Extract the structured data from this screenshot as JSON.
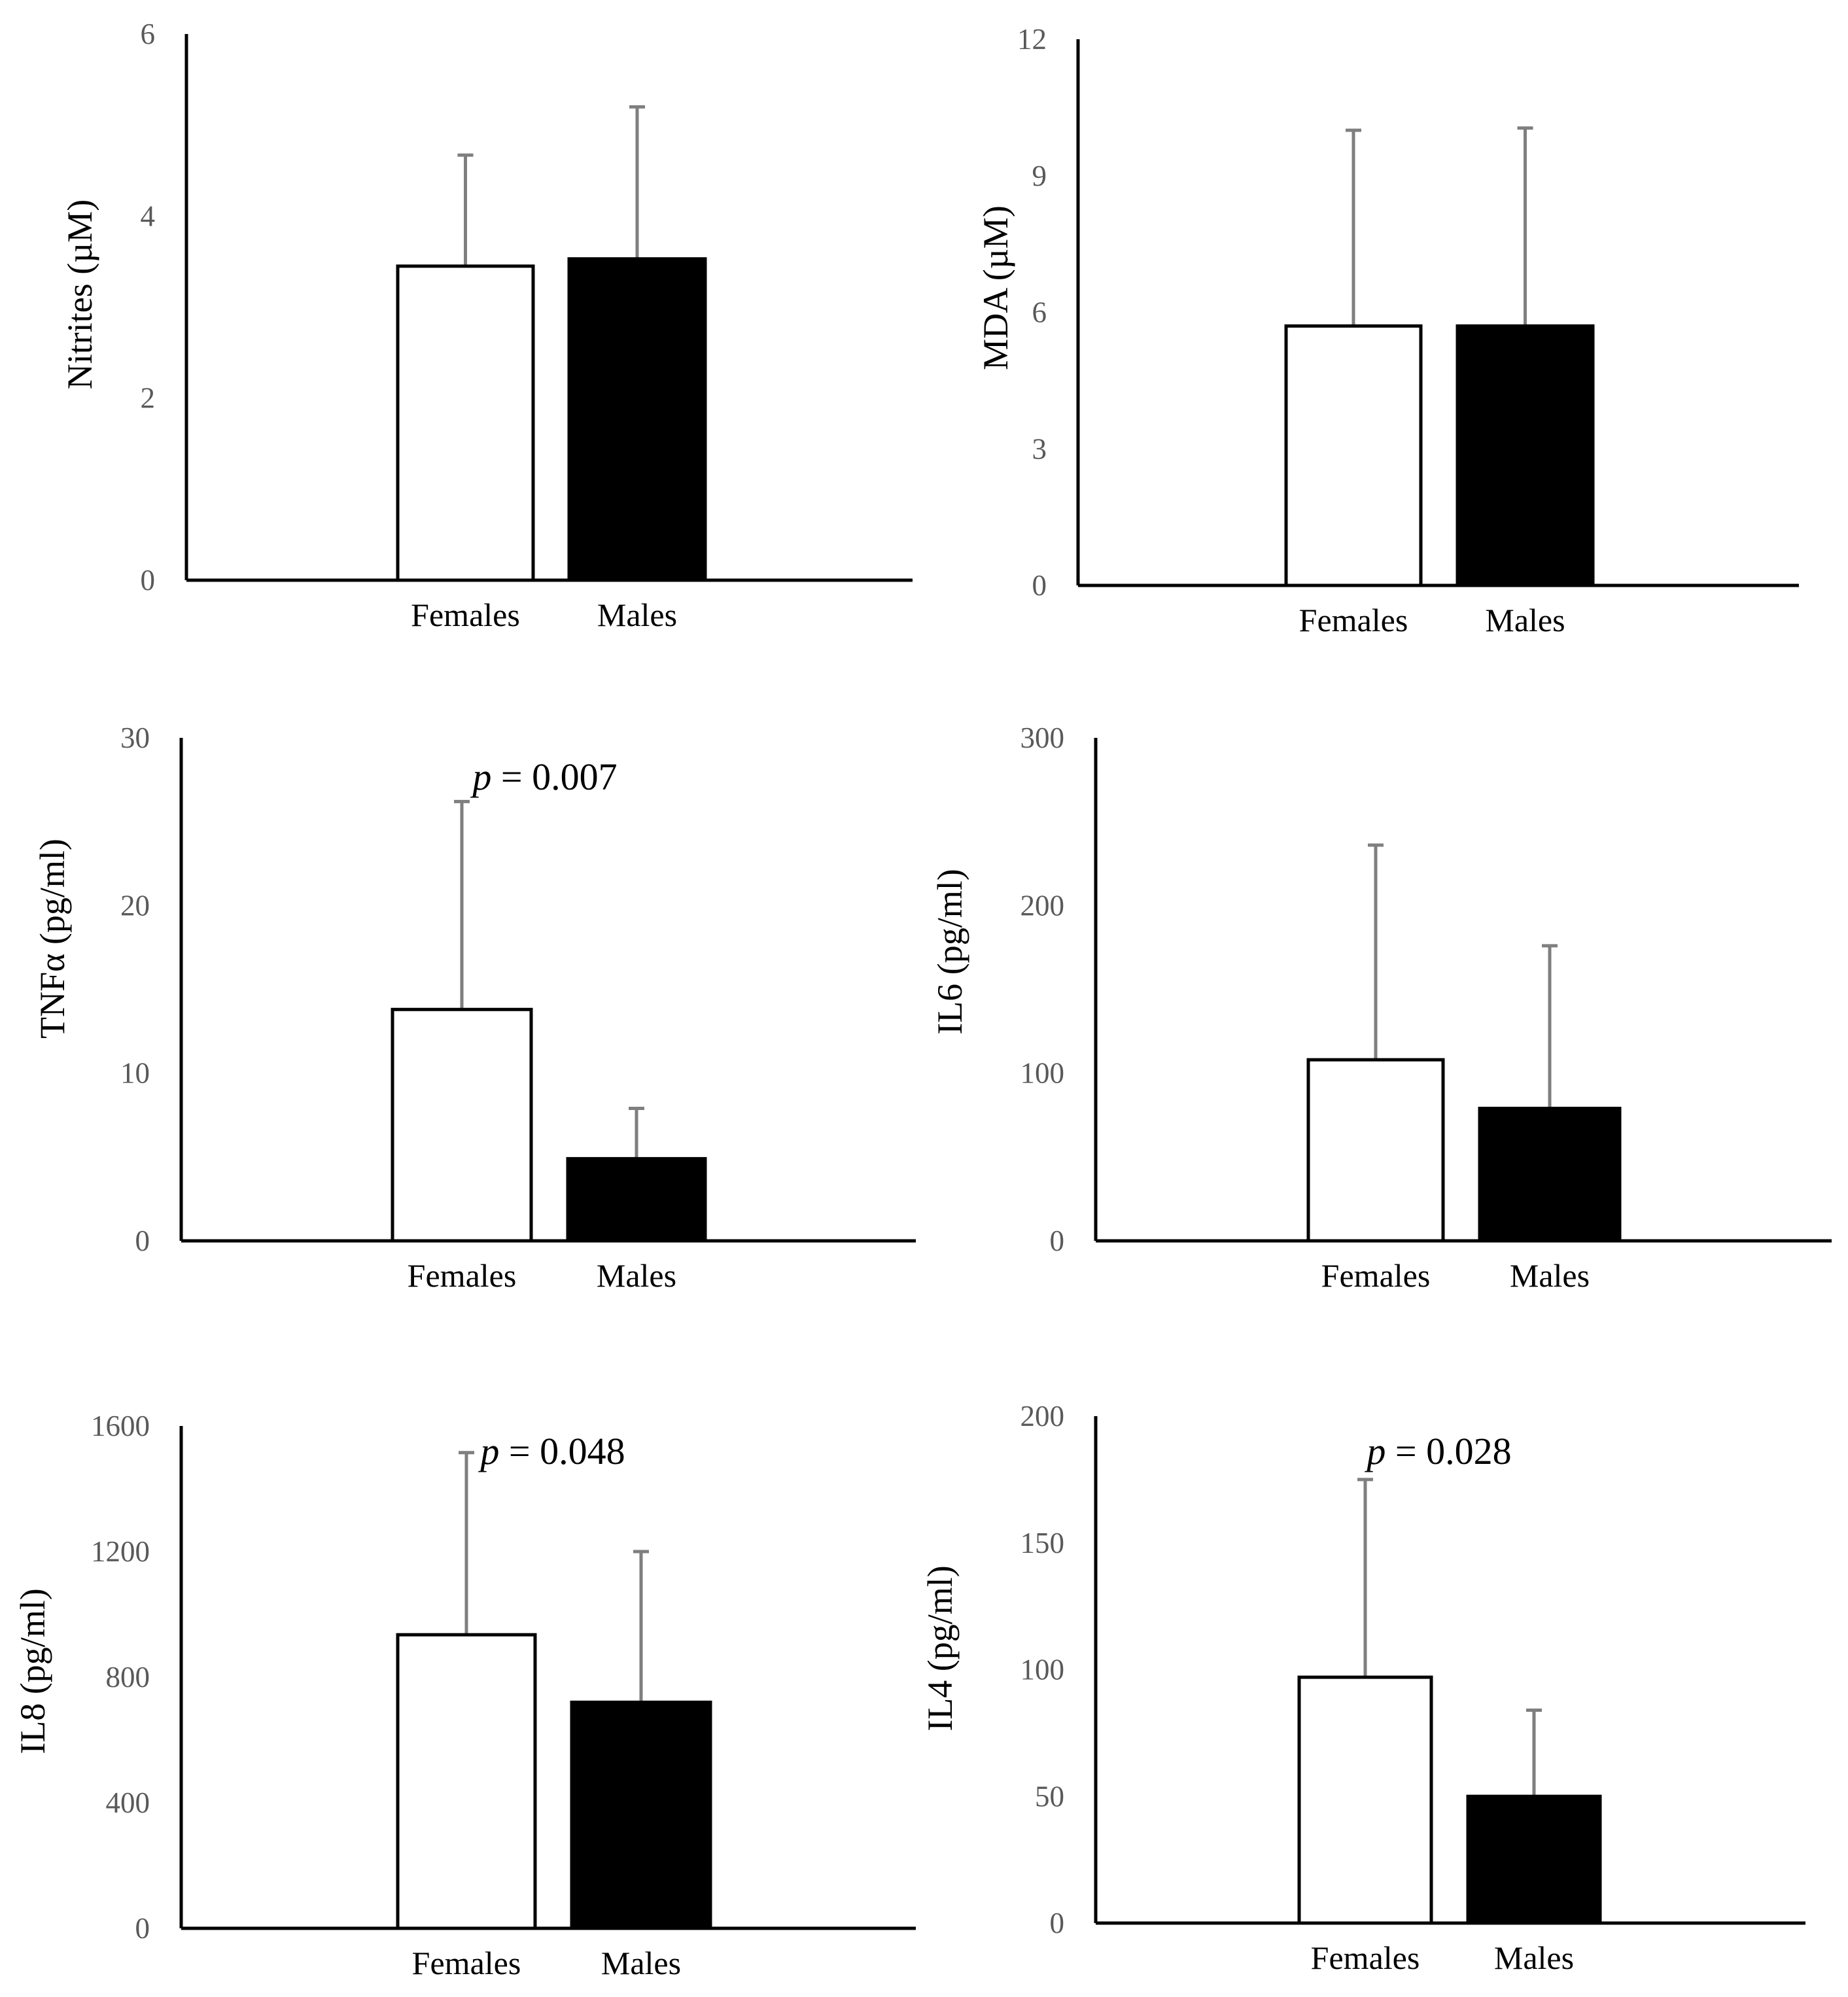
{
  "figure": {
    "categories": [
      "Females",
      "Males"
    ],
    "colors": {
      "females_fill": "#ffffff",
      "males_fill": "#000000",
      "bar_stroke": "#000000",
      "error_bar": "#7f7f7f",
      "tick_text": "#595959"
    }
  },
  "chart_data": [
    {
      "id": "nitrites",
      "type": "bar",
      "title": "",
      "ylabel": "Nitrites (µM)",
      "xlabel": "",
      "categories": [
        "Females",
        "Males"
      ],
      "values": [
        3.45,
        3.53
      ],
      "errors": [
        1.22,
        1.67
      ],
      "ylim": [
        0,
        6
      ],
      "yticks": [
        "0",
        "2",
        "4",
        "6"
      ],
      "annotation": null
    },
    {
      "id": "mda",
      "type": "bar",
      "title": "",
      "ylabel": "MDA (µM)",
      "xlabel": "",
      "categories": [
        "Females",
        "Males"
      ],
      "values": [
        5.7,
        5.7
      ],
      "errors": [
        4.3,
        4.35
      ],
      "ylim": [
        0,
        12
      ],
      "yticks": [
        "0",
        "3",
        "6",
        "9",
        "12"
      ],
      "annotation": null
    },
    {
      "id": "tnfa",
      "type": "bar",
      "title": "",
      "ylabel": "TNFα (pg/ml)",
      "xlabel": "",
      "categories": [
        "Females",
        "Males"
      ],
      "values": [
        13.8,
        4.9
      ],
      "errors": [
        12.4,
        3.0
      ],
      "ylim": [
        0,
        30
      ],
      "yticks": [
        "0",
        "10",
        "20",
        "30"
      ],
      "annotation": {
        "p_symbol": "p",
        "rest": " = 0.007"
      }
    },
    {
      "id": "il6",
      "type": "bar",
      "title": "",
      "ylabel": "IL6 (pg/ml)",
      "xlabel": "",
      "categories": [
        "Females",
        "Males"
      ],
      "values": [
        108,
        79
      ],
      "errors": [
        128,
        97
      ],
      "ylim": [
        0,
        300
      ],
      "yticks": [
        "0",
        "100",
        "200",
        "300"
      ],
      "annotation": null
    },
    {
      "id": "il8",
      "type": "bar",
      "title": "",
      "ylabel": "IL8 (pg/ml)",
      "xlabel": "",
      "categories": [
        "Females",
        "Males"
      ],
      "values": [
        935,
        720
      ],
      "errors": [
        580,
        480
      ],
      "ylim": [
        0,
        1600
      ],
      "yticks": [
        "0",
        "400",
        "800",
        "1200",
        "1600"
      ],
      "annotation": {
        "p_symbol": "p",
        "rest": " = 0.048"
      }
    },
    {
      "id": "il4",
      "type": "bar",
      "title": "",
      "ylabel": "IL4 (pg/ml)",
      "xlabel": "",
      "categories": [
        "Females",
        "Males"
      ],
      "values": [
        97,
        50
      ],
      "errors": [
        78,
        34
      ],
      "ylim": [
        0,
        200
      ],
      "yticks": [
        "0",
        "50",
        "100",
        "150",
        "200"
      ],
      "annotation": {
        "p_symbol": "p",
        "rest": " = 0.028"
      }
    }
  ]
}
